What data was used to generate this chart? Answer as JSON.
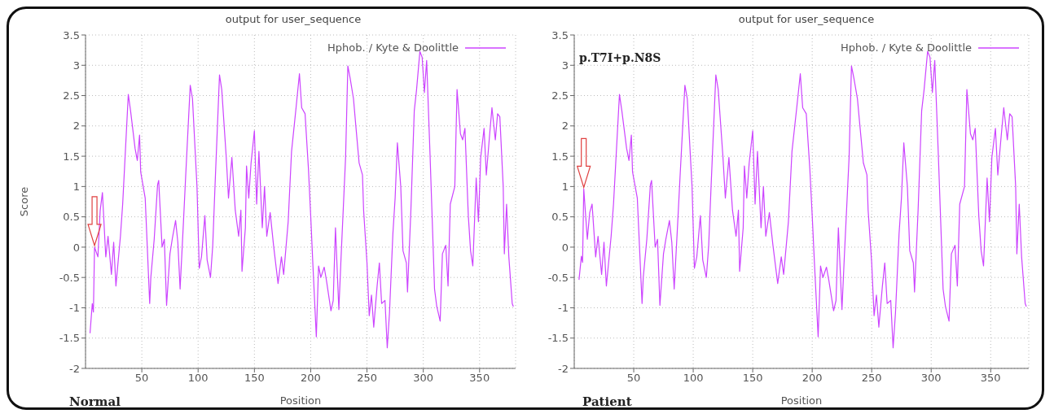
{
  "chart_data": [
    {
      "type": "line",
      "title": "output for user_sequence",
      "xlabel": "Position",
      "ylabel": "Score",
      "annotations": [
        "Normal"
      ],
      "xlim": [
        0,
        382
      ],
      "ylim": [
        -2,
        3.5
      ],
      "xticks": [
        50,
        100,
        150,
        200,
        250,
        300,
        350
      ],
      "yticks": [
        -2,
        -1.5,
        -1,
        -0.5,
        0,
        0.5,
        1,
        1.5,
        2,
        2.5,
        3,
        3.5
      ],
      "grid": true,
      "legend": "top right",
      "line_style": "solid",
      "marker": "none",
      "x": [
        4,
        6,
        7,
        8,
        11,
        13,
        15,
        18,
        20,
        23,
        25,
        27,
        31,
        33,
        38,
        40,
        44,
        46,
        48,
        49,
        53,
        57,
        58,
        61,
        64,
        65,
        68,
        70,
        72,
        75,
        77,
        80,
        82,
        84,
        87,
        89,
        93,
        95,
        99,
        101,
        103,
        106,
        108,
        111,
        113,
        115,
        119,
        121,
        125,
        127,
        130,
        133,
        136,
        138,
        139,
        142,
        143,
        145,
        147,
        150,
        152,
        154,
        157,
        159,
        161,
        164,
        167,
        171,
        174,
        176,
        180,
        183,
        187,
        190,
        192,
        195,
        198,
        200,
        202,
        205,
        207,
        209,
        212,
        214,
        218,
        220,
        222,
        225,
        227,
        231,
        233,
        235,
        238,
        240,
        243,
        246,
        247,
        250,
        252,
        254,
        256,
        259,
        261,
        263,
        266,
        268,
        270,
        273,
        275,
        277,
        280,
        282,
        285,
        286,
        289,
        292,
        294,
        297,
        299,
        301,
        303,
        306,
        308,
        310,
        312,
        315,
        317,
        320,
        322,
        324,
        328,
        330,
        333,
        335,
        337,
        340,
        342,
        344,
        347,
        349,
        351,
        354,
        356,
        359,
        361,
        364,
        366,
        368,
        371,
        372,
        374,
        376,
        379,
        380
      ],
      "series": [
        {
          "name": "Hphob. / Kyte & Doolittle",
          "color": "#cc44ff",
          "values": [
            -1.42,
            -0.93,
            -1.07,
            0,
            -0.16,
            0.6,
            0.9,
            -0.16,
            0.18,
            -0.45,
            0.08,
            -0.64,
            0.18,
            0.71,
            2.52,
            2.25,
            1.63,
            1.43,
            1.85,
            1.24,
            0.81,
            -0.93,
            -0.5,
            0.13,
            1.03,
            1.1,
            0,
            0.13,
            -0.96,
            -0.11,
            0.13,
            0.44,
            0.08,
            -0.69,
            0.42,
            1.19,
            2.67,
            2.45,
            1.0,
            -0.35,
            -0.16,
            0.52,
            -0.21,
            -0.5,
            0.03,
            1.0,
            2.84,
            2.6,
            1.48,
            0.81,
            1.48,
            0.61,
            0.18,
            0.61,
            -0.4,
            0.32,
            1.34,
            0.81,
            1.38,
            1.92,
            0.71,
            1.58,
            0.32,
            1.0,
            0.18,
            0.57,
            0.03,
            -0.6,
            -0.16,
            -0.45,
            0.42,
            1.58,
            2.3,
            2.86,
            2.3,
            2.2,
            1.29,
            0.52,
            -0.31,
            -1.48,
            -0.31,
            -0.5,
            -0.33,
            -0.55,
            -1.05,
            -0.88,
            0.32,
            -1.03,
            -0.16,
            1.48,
            2.99,
            2.79,
            2.45,
            2.02,
            1.39,
            1.19,
            0.61,
            -0.26,
            -1.13,
            -0.79,
            -1.32,
            -0.64,
            -0.26,
            -0.93,
            -0.88,
            -1.66,
            -1.08,
            0.22,
            0.81,
            1.72,
            1.0,
            -0.06,
            -0.26,
            -0.74,
            0.61,
            2.25,
            2.59,
            3.23,
            3.13,
            2.55,
            3.08,
            1.53,
            0.42,
            -0.69,
            -0.98,
            -1.22,
            -0.11,
            0.03,
            -0.64,
            0.71,
            1.0,
            2.6,
            1.87,
            1.77,
            1.96,
            0.52,
            -0.06,
            -0.31,
            1.14,
            0.42,
            1.48,
            1.96,
            1.19,
            1.87,
            2.3,
            1.77,
            2.2,
            2.15,
            1.0,
            -0.11,
            0.71,
            -0.16,
            -0.93,
            -0.98
          ]
        }
      ]
    },
    {
      "type": "line",
      "title": "output for user_sequence",
      "xlabel": "Position",
      "annotations": [
        "Patient",
        "p.T7I+p.N8S"
      ],
      "xlim": [
        0,
        382
      ],
      "ylim": [
        -2,
        3.5
      ],
      "xticks": [
        50,
        100,
        150,
        200,
        250,
        300,
        350
      ],
      "yticks": [
        -2,
        -1.5,
        -1,
        -0.5,
        0,
        0.5,
        1,
        1.5,
        2,
        2.5,
        3,
        3.5
      ],
      "grid": true,
      "legend": "top right",
      "line_style": "solid",
      "marker": "none",
      "x": [
        4,
        6,
        7,
        8,
        11,
        13,
        15,
        18,
        20,
        23,
        25,
        27,
        31,
        33,
        38,
        40,
        44,
        46,
        48,
        49,
        53,
        57,
        58,
        61,
        64,
        65,
        68,
        70,
        72,
        75,
        77,
        80,
        82,
        84,
        87,
        89,
        93,
        95,
        99,
        101,
        103,
        106,
        108,
        111,
        113,
        115,
        119,
        121,
        125,
        127,
        130,
        133,
        136,
        138,
        139,
        142,
        143,
        145,
        147,
        150,
        152,
        154,
        157,
        159,
        161,
        164,
        167,
        171,
        174,
        176,
        180,
        183,
        187,
        190,
        192,
        195,
        198,
        200,
        202,
        205,
        207,
        209,
        212,
        214,
        218,
        220,
        222,
        225,
        227,
        231,
        233,
        235,
        238,
        240,
        243,
        246,
        247,
        250,
        252,
        254,
        256,
        259,
        261,
        263,
        266,
        268,
        270,
        273,
        275,
        277,
        280,
        282,
        285,
        286,
        289,
        292,
        294,
        297,
        299,
        301,
        303,
        306,
        308,
        310,
        312,
        315,
        317,
        320,
        322,
        324,
        328,
        330,
        333,
        335,
        337,
        340,
        342,
        344,
        347,
        349,
        351,
        354,
        356,
        359,
        361,
        364,
        366,
        368,
        371,
        372,
        374,
        376,
        379,
        380
      ],
      "series": [
        {
          "name": "Hphob. / Kyte & Doolittle",
          "color": "#cc44ff",
          "values": [
            -0.54,
            -0.15,
            -0.25,
            0.96,
            0.13,
            0.57,
            0.71,
            -0.16,
            0.18,
            -0.45,
            0.08,
            -0.64,
            0.18,
            0.71,
            2.52,
            2.25,
            1.63,
            1.43,
            1.85,
            1.24,
            0.81,
            -0.93,
            -0.5,
            0.13,
            1.03,
            1.1,
            0,
            0.13,
            -0.96,
            -0.11,
            0.13,
            0.44,
            0.08,
            -0.69,
            0.42,
            1.19,
            2.67,
            2.45,
            1.0,
            -0.35,
            -0.16,
            0.52,
            -0.21,
            -0.5,
            0.03,
            1.0,
            2.84,
            2.6,
            1.48,
            0.81,
            1.48,
            0.61,
            0.18,
            0.61,
            -0.4,
            0.32,
            1.34,
            0.81,
            1.38,
            1.92,
            0.71,
            1.58,
            0.32,
            1.0,
            0.18,
            0.57,
            0.03,
            -0.6,
            -0.16,
            -0.45,
            0.42,
            1.58,
            2.3,
            2.86,
            2.3,
            2.2,
            1.29,
            0.52,
            -0.31,
            -1.48,
            -0.31,
            -0.5,
            -0.33,
            -0.55,
            -1.05,
            -0.88,
            0.32,
            -1.03,
            -0.16,
            1.48,
            2.99,
            2.79,
            2.45,
            2.02,
            1.39,
            1.19,
            0.61,
            -0.26,
            -1.13,
            -0.79,
            -1.32,
            -0.64,
            -0.26,
            -0.93,
            -0.88,
            -1.66,
            -1.08,
            0.22,
            0.81,
            1.72,
            1.0,
            -0.06,
            -0.26,
            -0.74,
            0.61,
            2.25,
            2.59,
            3.23,
            3.13,
            2.55,
            3.08,
            1.53,
            0.42,
            -0.69,
            -0.98,
            -1.22,
            -0.11,
            0.03,
            -0.64,
            0.71,
            1.0,
            2.6,
            1.87,
            1.77,
            1.96,
            0.52,
            -0.06,
            -0.31,
            1.14,
            0.42,
            1.48,
            1.96,
            1.19,
            1.87,
            2.3,
            1.77,
            2.2,
            2.15,
            1.0,
            -0.11,
            0.71,
            -0.16,
            -0.93,
            -0.98
          ]
        }
      ]
    }
  ]
}
